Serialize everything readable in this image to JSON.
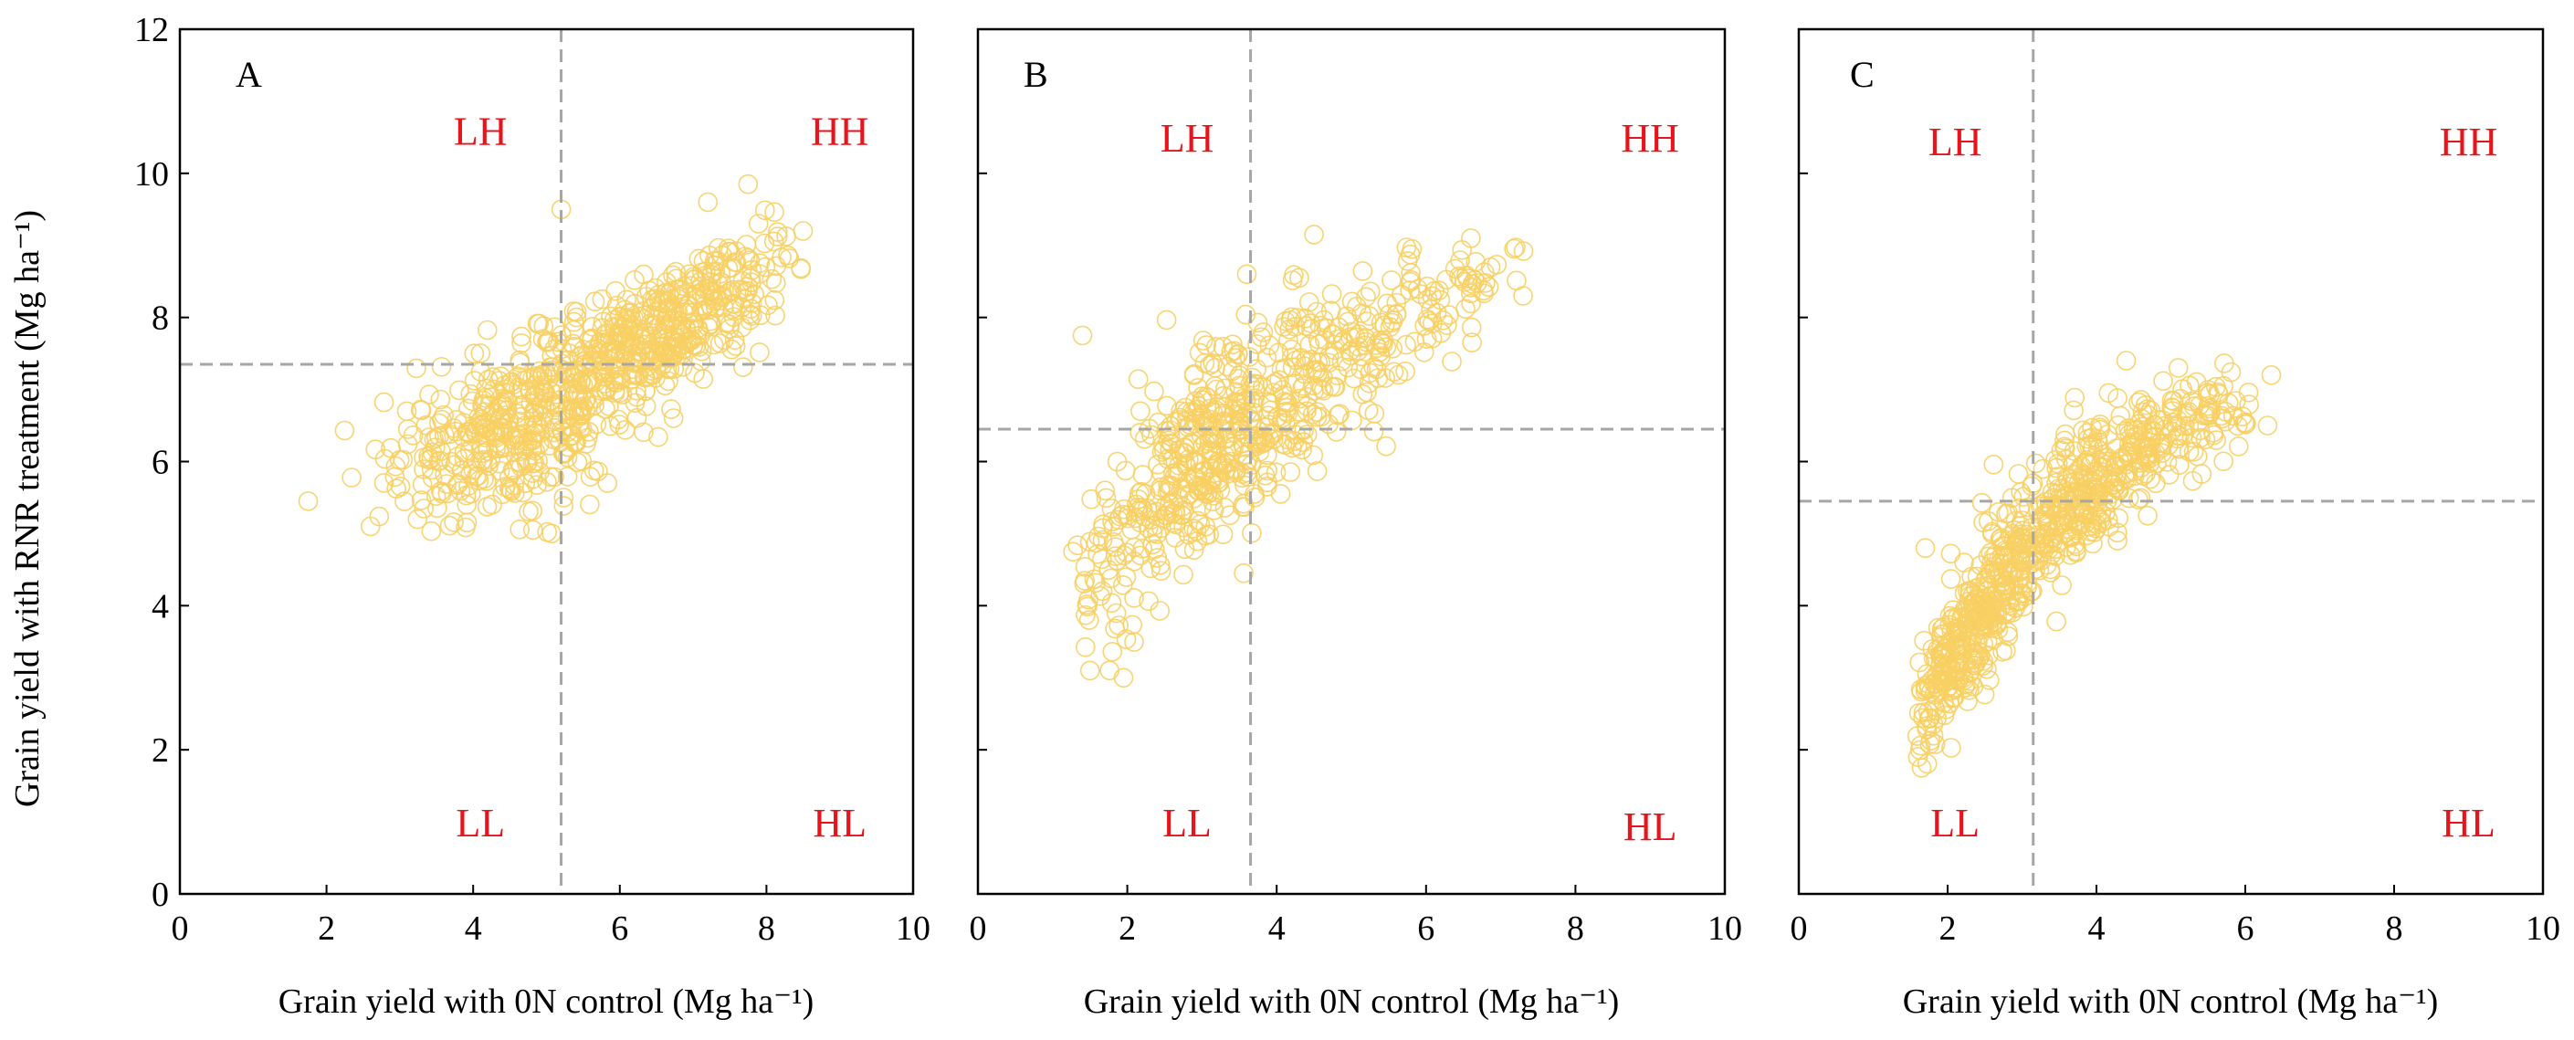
{
  "figure": {
    "ylabel": "Grain yield with RNR treatment (Mg ha⁻¹)",
    "xlabel": "Grain yield with 0N control (Mg ha⁻¹)"
  },
  "style": {
    "point_color": "#f7cf63",
    "quadrant_label_color": "#e8131b",
    "threshold_line_color": "#a6a6a6",
    "axis_color": "#000000"
  },
  "chart_data": [
    {
      "type": "scatter",
      "panel_label": "A",
      "xlim": [
        0,
        10
      ],
      "ylim": [
        0,
        12
      ],
      "xticks": [
        0,
        2,
        4,
        6,
        8,
        10
      ],
      "yticks": [
        0,
        2,
        4,
        6,
        8,
        10,
        12
      ],
      "xlabel": "Grain yield with 0N control (Mg ha⁻¹)",
      "ylabel": "Grain yield with RNR treatment (Mg ha⁻¹)",
      "threshold_x": 5.2,
      "threshold_y": 7.35,
      "quadrants": [
        {
          "label": "LH",
          "x": 4.1,
          "y": 10.4
        },
        {
          "label": "HH",
          "x": 9.0,
          "y": 10.4
        },
        {
          "label": "LL",
          "x": 4.1,
          "y": 0.8
        },
        {
          "label": "HL",
          "x": 9.0,
          "y": 0.8
        }
      ],
      "clusters": [
        {
          "n": 330,
          "cx": 4.6,
          "cy": 6.4,
          "sx": 0.75,
          "sy": 0.6,
          "r": 0.35
        },
        {
          "n": 380,
          "cx": 6.3,
          "cy": 7.65,
          "sx": 0.85,
          "sy": 0.55,
          "r": 0.65
        },
        {
          "n": 90,
          "cx": 7.4,
          "cy": 8.5,
          "sx": 0.55,
          "sy": 0.45,
          "r": 0.6
        },
        {
          "n": 30,
          "cx": 3.0,
          "cy": 5.8,
          "sx": 0.4,
          "sy": 0.55,
          "r": 0.1
        }
      ],
      "bounds": {
        "x": [
          1.7,
          8.6
        ],
        "y": [
          5.0,
          9.9
        ]
      },
      "extremes": [
        [
          1.75,
          5.45
        ],
        [
          7.75,
          9.85
        ],
        [
          5.2,
          9.5
        ],
        [
          2.6,
          5.1
        ],
        [
          8.5,
          9.2
        ],
        [
          7.2,
          9.6
        ]
      ]
    },
    {
      "type": "scatter",
      "panel_label": "B",
      "xlim": [
        0,
        10
      ],
      "ylim": [
        0,
        12
      ],
      "xticks": [
        0,
        2,
        4,
        6,
        8,
        10
      ],
      "yticks": [
        0,
        2,
        4,
        6,
        8,
        10,
        12
      ],
      "xlabel": "Grain yield with 0N control (Mg ha⁻¹)",
      "ylabel": "",
      "threshold_x": 3.65,
      "threshold_y": 6.45,
      "quadrants": [
        {
          "label": "LH",
          "x": 2.8,
          "y": 10.3
        },
        {
          "label": "HH",
          "x": 9.0,
          "y": 10.3
        },
        {
          "label": "LL",
          "x": 2.8,
          "y": 0.8
        },
        {
          "label": "HL",
          "x": 9.0,
          "y": 0.75
        }
      ],
      "clusters": [
        {
          "n": 330,
          "cx": 3.1,
          "cy": 6.2,
          "sx": 0.55,
          "sy": 0.75,
          "r": 0.45
        },
        {
          "n": 200,
          "cx": 4.7,
          "cy": 7.3,
          "sx": 0.8,
          "sy": 0.75,
          "r": 0.6
        },
        {
          "n": 70,
          "cx": 1.8,
          "cy": 4.5,
          "sx": 0.3,
          "sy": 0.75,
          "r": 0.4
        },
        {
          "n": 60,
          "cx": 6.3,
          "cy": 8.4,
          "sx": 0.55,
          "sy": 0.5,
          "r": 0.5
        }
      ],
      "bounds": {
        "x": [
          1.25,
          7.35
        ],
        "y": [
          2.95,
          9.25
        ]
      },
      "extremes": [
        [
          1.95,
          3.0
        ],
        [
          1.5,
          3.1
        ],
        [
          7.3,
          8.3
        ],
        [
          6.6,
          9.1
        ],
        [
          4.5,
          9.15
        ],
        [
          3.6,
          8.6
        ],
        [
          1.4,
          7.75
        ]
      ]
    },
    {
      "type": "scatter",
      "panel_label": "C",
      "xlim": [
        0,
        10
      ],
      "ylim": [
        0,
        12
      ],
      "xticks": [
        0,
        2,
        4,
        6,
        8,
        10
      ],
      "yticks": [
        0,
        2,
        4,
        6,
        8,
        10,
        12
      ],
      "xlabel": "Grain yield with 0N control (Mg ha⁻¹)",
      "ylabel": "",
      "threshold_x": 3.15,
      "threshold_y": 5.45,
      "quadrants": [
        {
          "label": "LH",
          "x": 2.1,
          "y": 10.25
        },
        {
          "label": "HH",
          "x": 9.0,
          "y": 10.25
        },
        {
          "label": "LL",
          "x": 2.1,
          "y": 0.8
        },
        {
          "label": "HL",
          "x": 9.0,
          "y": 0.8
        }
      ],
      "clusters": [
        {
          "n": 300,
          "cx": 2.5,
          "cy": 3.9,
          "sx": 0.45,
          "sy": 0.75,
          "r": 0.82
        },
        {
          "n": 320,
          "cx": 3.8,
          "cy": 5.5,
          "sx": 0.6,
          "sy": 0.6,
          "r": 0.65
        },
        {
          "n": 110,
          "cx": 5.2,
          "cy": 6.5,
          "sx": 0.55,
          "sy": 0.4,
          "r": 0.5
        },
        {
          "n": 70,
          "cx": 1.9,
          "cy": 2.8,
          "sx": 0.22,
          "sy": 0.55,
          "r": 0.7
        }
      ],
      "bounds": {
        "x": [
          1.55,
          6.4
        ],
        "y": [
          1.7,
          7.4
        ]
      },
      "extremes": [
        [
          1.65,
          1.75
        ],
        [
          1.6,
          1.9
        ],
        [
          6.35,
          7.2
        ],
        [
          4.4,
          7.4
        ],
        [
          5.1,
          7.3
        ],
        [
          6.3,
          6.5
        ],
        [
          1.7,
          4.8
        ]
      ]
    }
  ]
}
